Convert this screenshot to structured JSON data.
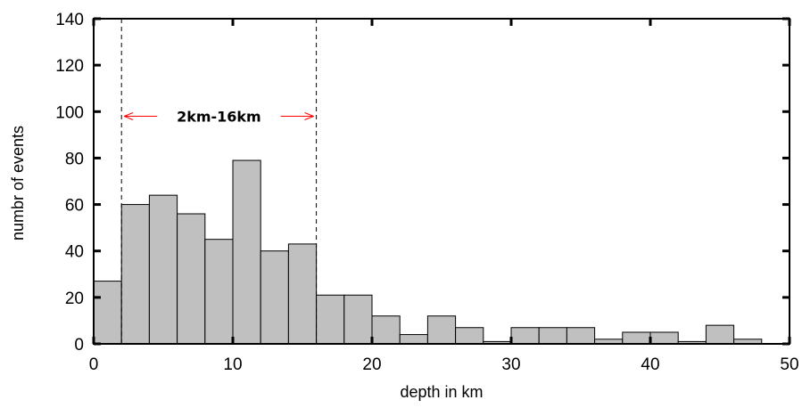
{
  "chart_data": {
    "type": "bar",
    "title": "",
    "xlabel": "depth in km",
    "ylabel": "numbr of events",
    "xlim": [
      0,
      50
    ],
    "ylim": [
      0,
      140
    ],
    "xticks": [
      0,
      10,
      20,
      30,
      40,
      50
    ],
    "yticks": [
      0,
      20,
      40,
      60,
      80,
      100,
      120,
      140
    ],
    "bin_width": 2,
    "bins": [
      {
        "x0": 0,
        "x1": 2,
        "value": 27
      },
      {
        "x0": 2,
        "x1": 4,
        "value": 60
      },
      {
        "x0": 4,
        "x1": 6,
        "value": 64
      },
      {
        "x0": 6,
        "x1": 8,
        "value": 56
      },
      {
        "x0": 8,
        "x1": 10,
        "value": 45
      },
      {
        "x0": 10,
        "x1": 12,
        "value": 79
      },
      {
        "x0": 12,
        "x1": 14,
        "value": 40
      },
      {
        "x0": 14,
        "x1": 16,
        "value": 43
      },
      {
        "x0": 16,
        "x1": 18,
        "value": 21
      },
      {
        "x0": 18,
        "x1": 20,
        "value": 21
      },
      {
        "x0": 20,
        "x1": 22,
        "value": 12
      },
      {
        "x0": 22,
        "x1": 24,
        "value": 4
      },
      {
        "x0": 24,
        "x1": 26,
        "value": 12
      },
      {
        "x0": 26,
        "x1": 28,
        "value": 7
      },
      {
        "x0": 28,
        "x1": 30,
        "value": 1
      },
      {
        "x0": 30,
        "x1": 32,
        "value": 7
      },
      {
        "x0": 32,
        "x1": 34,
        "value": 7
      },
      {
        "x0": 34,
        "x1": 36,
        "value": 7
      },
      {
        "x0": 36,
        "x1": 38,
        "value": 2
      },
      {
        "x0": 38,
        "x1": 40,
        "value": 5
      },
      {
        "x0": 40,
        "x1": 42,
        "value": 5
      },
      {
        "x0": 42,
        "x1": 44,
        "value": 1
      },
      {
        "x0": 44,
        "x1": 46,
        "value": 8
      },
      {
        "x0": 46,
        "x1": 48,
        "value": 2
      }
    ],
    "grid": false,
    "bar_color": "#c0c0c0",
    "bar_edge_color": "#000000",
    "annotation": {
      "text": "2km-16km",
      "range": [
        2,
        16
      ],
      "y": 98,
      "arrow_color": "#ff0000"
    }
  }
}
